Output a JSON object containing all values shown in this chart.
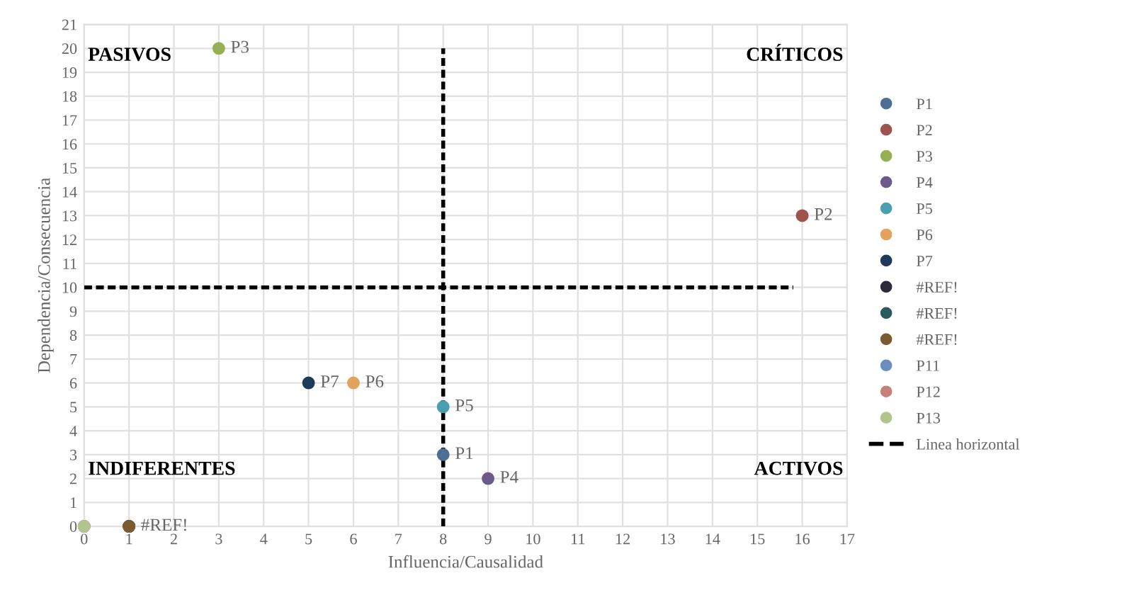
{
  "chart_data": {
    "type": "scatter",
    "xlabel": "Influencia/Causalidad",
    "ylabel": "Dependencia/Consecuencia",
    "xlim": [
      0,
      17
    ],
    "ylim": [
      0,
      21
    ],
    "xticks": [
      0,
      1,
      2,
      3,
      4,
      5,
      6,
      7,
      8,
      9,
      10,
      11,
      12,
      13,
      14,
      15,
      16,
      17
    ],
    "yticks": [
      0,
      1,
      2,
      3,
      4,
      5,
      6,
      7,
      8,
      9,
      10,
      11,
      12,
      13,
      14,
      15,
      16,
      17,
      18,
      19,
      20,
      21
    ],
    "grid": true,
    "legend": "right",
    "marker": "circle",
    "series": [
      {
        "name": "P1",
        "color": "#4e6e93",
        "x": [
          8
        ],
        "values": [
          3
        ]
      },
      {
        "name": "P2",
        "color": "#a0524d",
        "x": [
          16
        ],
        "values": [
          13
        ]
      },
      {
        "name": "P3",
        "color": "#98b054",
        "x": [
          3
        ],
        "values": [
          20
        ]
      },
      {
        "name": "P4",
        "color": "#6c5a8c",
        "x": [
          9
        ],
        "values": [
          2
        ]
      },
      {
        "name": "P5",
        "color": "#4a9fb0",
        "x": [
          8
        ],
        "values": [
          5
        ]
      },
      {
        "name": "P6",
        "color": "#e3a35d",
        "x": [
          6
        ],
        "values": [
          6
        ]
      },
      {
        "name": "P7",
        "color": "#1f3a5a",
        "x": [
          5
        ],
        "values": [
          6
        ]
      },
      {
        "name": "#REF!",
        "color": "#2b2b3a",
        "x": [
          1
        ],
        "values": [
          0
        ]
      },
      {
        "name": "#REF!",
        "color": "#2b5b5e",
        "x": [
          1
        ],
        "values": [
          0
        ]
      },
      {
        "name": "#REF!",
        "color": "#7a5a2e",
        "x": [
          1
        ],
        "values": [
          0
        ]
      },
      {
        "name": "P11",
        "color": "#6a8fbf",
        "x": [
          0
        ],
        "values": [
          0
        ]
      },
      {
        "name": "P12",
        "color": "#c7807a",
        "x": [
          0
        ],
        "values": [
          0
        ]
      },
      {
        "name": "P13",
        "color": "#b4c48e",
        "x": [
          0
        ],
        "values": [
          0
        ]
      },
      {
        "name": "Linea horizontal",
        "type": "line",
        "color": "#000000",
        "line_style": "dashed",
        "marker": "none",
        "x": [
          0,
          15.8
        ],
        "values": [
          10,
          10
        ]
      },
      {
        "type": "line",
        "color": "#000000",
        "line_style": "dashed",
        "marker": "none",
        "x": [
          8,
          8
        ],
        "values": [
          0,
          20
        ]
      }
    ],
    "annotations": [
      "PASIVOS",
      "CRÍTICOS",
      "INDIFERENTES",
      "ACTIVOS",
      {
        "text": "P1",
        "x": 8,
        "y": 3
      },
      {
        "text": "P2",
        "x": 16,
        "y": 13
      },
      {
        "text": "P3",
        "x": 3,
        "y": 20
      },
      {
        "text": "P4",
        "x": 9,
        "y": 2
      },
      {
        "text": "P5",
        "x": 8,
        "y": 5
      },
      {
        "text": "P6",
        "x": 6,
        "y": 6
      },
      {
        "text": "P7",
        "x": 5,
        "y": 6
      },
      {
        "text": "#REF!",
        "x": 1,
        "y": 0
      }
    ]
  }
}
